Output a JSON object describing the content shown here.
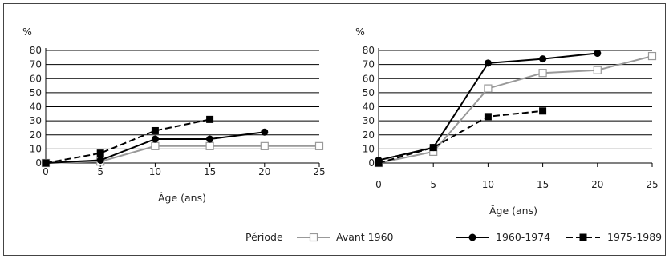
{
  "legend": {
    "title": "Période",
    "entries": [
      {
        "label": "Avant 1960",
        "color": "#999999",
        "marker": "square-open",
        "dash": "solid"
      },
      {
        "label": "1960-1974",
        "color": "#000000",
        "marker": "circle",
        "dash": "solid"
      },
      {
        "label": "1975-1989",
        "color": "#000000",
        "marker": "square",
        "dash": "dashed"
      }
    ]
  },
  "chart_data": [
    {
      "type": "line",
      "ylabel": "%",
      "xlabel": "Âge (ans)",
      "xlim": [
        0,
        25
      ],
      "ylim": [
        0,
        80
      ],
      "xticks": [
        "0",
        "5",
        "10",
        "15",
        "20",
        "25"
      ],
      "yticks": [
        "0",
        "10",
        "20",
        "30",
        "40",
        "50",
        "60",
        "70",
        "80"
      ],
      "grid": "horizontal",
      "series": [
        {
          "name": "Avant 1960",
          "x": [
            0,
            5,
            10,
            15,
            20,
            25
          ],
          "y": [
            0,
            1,
            12,
            12,
            12,
            12
          ]
        },
        {
          "name": "1960-1974",
          "x": [
            0,
            5,
            10,
            15,
            20
          ],
          "y": [
            0,
            2,
            17,
            17,
            22
          ]
        },
        {
          "name": "1975-1989",
          "x": [
            0,
            5,
            10,
            15
          ],
          "y": [
            0,
            7,
            23,
            31
          ]
        }
      ]
    },
    {
      "type": "line",
      "ylabel": "%",
      "xlabel": "Âge (ans)",
      "xlim": [
        0,
        25
      ],
      "ylim": [
        0,
        80
      ],
      "xticks": [
        "0",
        "5",
        "10",
        "15",
        "20",
        "25"
      ],
      "yticks": [
        "0",
        "10",
        "20",
        "30",
        "40",
        "50",
        "60",
        "70",
        "80"
      ],
      "grid": "horizontal",
      "series": [
        {
          "name": "Avant 1960",
          "x": [
            0,
            5,
            10,
            15,
            20,
            25
          ],
          "y": [
            0,
            8,
            53,
            64,
            66,
            76
          ]
        },
        {
          "name": "1960-1974",
          "x": [
            0,
            5,
            10,
            15,
            20
          ],
          "y": [
            2,
            11,
            71,
            74,
            78
          ]
        },
        {
          "name": "1975-1989",
          "x": [
            0,
            5,
            10,
            15
          ],
          "y": [
            0,
            11,
            33,
            37
          ]
        }
      ]
    }
  ]
}
